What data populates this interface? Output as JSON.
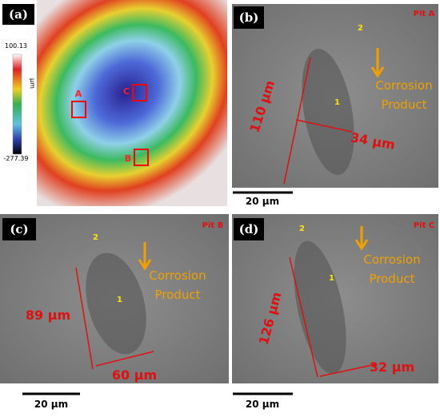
{
  "panels": {
    "a": {
      "label": "(a)",
      "colorbar": {
        "max": "100.13",
        "unit": "μm",
        "min": "-277.39"
      },
      "markers": [
        "A",
        "B",
        "C"
      ]
    },
    "b": {
      "label": "(b)",
      "pit": "Pit A",
      "regions": [
        "2",
        "1"
      ],
      "product": [
        "Corrosion",
        "Product"
      ],
      "dimensions": [
        "110 μm",
        "34 μm"
      ],
      "scale_bar": "20 μm"
    },
    "c": {
      "label": "(c)",
      "pit": "Pit B",
      "regions": [
        "2",
        "1"
      ],
      "product": [
        "Corrosion",
        "Product"
      ],
      "dimensions": [
        "89 μm",
        "60 μm"
      ],
      "scale_bar": "20 μm"
    },
    "d": {
      "label": "(d)",
      "pit": "Pit C",
      "regions": [
        "2",
        "1"
      ],
      "product": [
        "Corrosion",
        "Product"
      ],
      "dimensions": [
        "126 μm",
        "32 μm"
      ],
      "scale_bar": "20 μm"
    }
  }
}
